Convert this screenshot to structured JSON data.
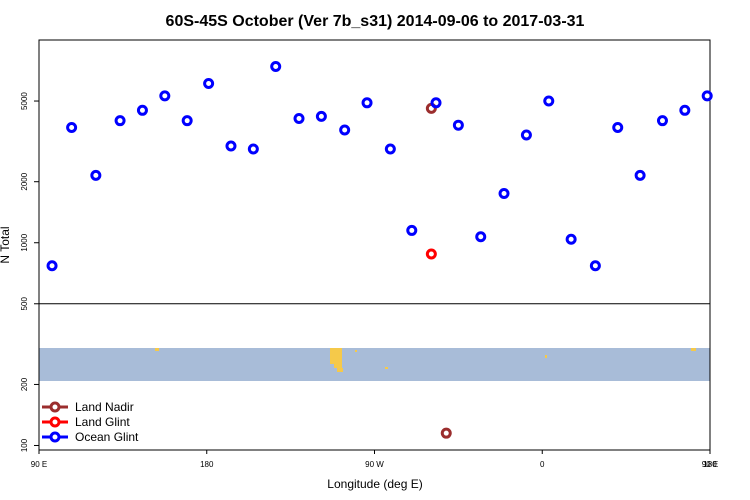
{
  "chart_data": {
    "type": "scatter",
    "title": "60S-45S October (Ver 7b_s31)   2014-09-06 to 2017-03-31",
    "xlabel": "Longitude (deg E)",
    "ylabel": "N Total",
    "x_axis": {
      "range_deg_east": [
        90,
        450
      ],
      "ticks": [
        {
          "value": 90,
          "label": "90 E"
        },
        {
          "value": 180,
          "label": "180"
        },
        {
          "value": 270,
          "label": "90 W"
        },
        {
          "value": 360,
          "label": "0"
        },
        {
          "value": 450,
          "label": "90 E"
        },
        {
          "value": 540,
          "label": "180"
        }
      ]
    },
    "y_axis": {
      "scale": "log",
      "range": [
        95,
        10000
      ],
      "ticks": [
        100,
        200,
        500,
        1000,
        2000,
        5000
      ]
    },
    "reference_line_y": 500,
    "map_strip": {
      "ocean_color": "#a8bcd8",
      "land_color": "#f5c94a"
    },
    "series": [
      {
        "name": "Land Nadir",
        "color": "#9b2d2d",
        "points": [
          {
            "x": 300.5,
            "y": 4600
          },
          {
            "x": 308.5,
            "y": 115
          }
        ]
      },
      {
        "name": "Land Glint",
        "color": "#ff0000",
        "points": [
          {
            "x": 300.5,
            "y": 880
          }
        ]
      },
      {
        "name": "Ocean Glint",
        "color": "#0000ff",
        "points": [
          {
            "x": 97,
            "y": 770
          },
          {
            "x": 107.5,
            "y": 3700
          },
          {
            "x": 120.5,
            "y": 2150
          },
          {
            "x": 133.5,
            "y": 4000
          },
          {
            "x": 145.5,
            "y": 4500
          },
          {
            "x": 157.5,
            "y": 5300
          },
          {
            "x": 169.5,
            "y": 4000
          },
          {
            "x": 181,
            "y": 6100
          },
          {
            "x": 193,
            "y": 3000
          },
          {
            "x": 205,
            "y": 2900
          },
          {
            "x": 217,
            "y": 7400
          },
          {
            "x": 229.5,
            "y": 4100
          },
          {
            "x": 241.5,
            "y": 4200
          },
          {
            "x": 254,
            "y": 3600
          },
          {
            "x": 266,
            "y": 4900
          },
          {
            "x": 278.5,
            "y": 2900
          },
          {
            "x": 290,
            "y": 1150
          },
          {
            "x": 303,
            "y": 4900
          },
          {
            "x": 315,
            "y": 3800
          },
          {
            "x": 327,
            "y": 1070
          },
          {
            "x": 339.5,
            "y": 1750
          },
          {
            "x": 351.5,
            "y": 3400
          },
          {
            "x": 363.5,
            "y": 5000
          },
          {
            "x": 375.5,
            "y": 1040
          },
          {
            "x": 388.5,
            "y": 770
          },
          {
            "x": 400.5,
            "y": 3700
          },
          {
            "x": 412.5,
            "y": 2150
          },
          {
            "x": 424.5,
            "y": 4000
          },
          {
            "x": 436.5,
            "y": 4500
          },
          {
            "x": 448.5,
            "y": 5300
          }
        ]
      }
    ],
    "legend_placement": "bottom-left"
  }
}
